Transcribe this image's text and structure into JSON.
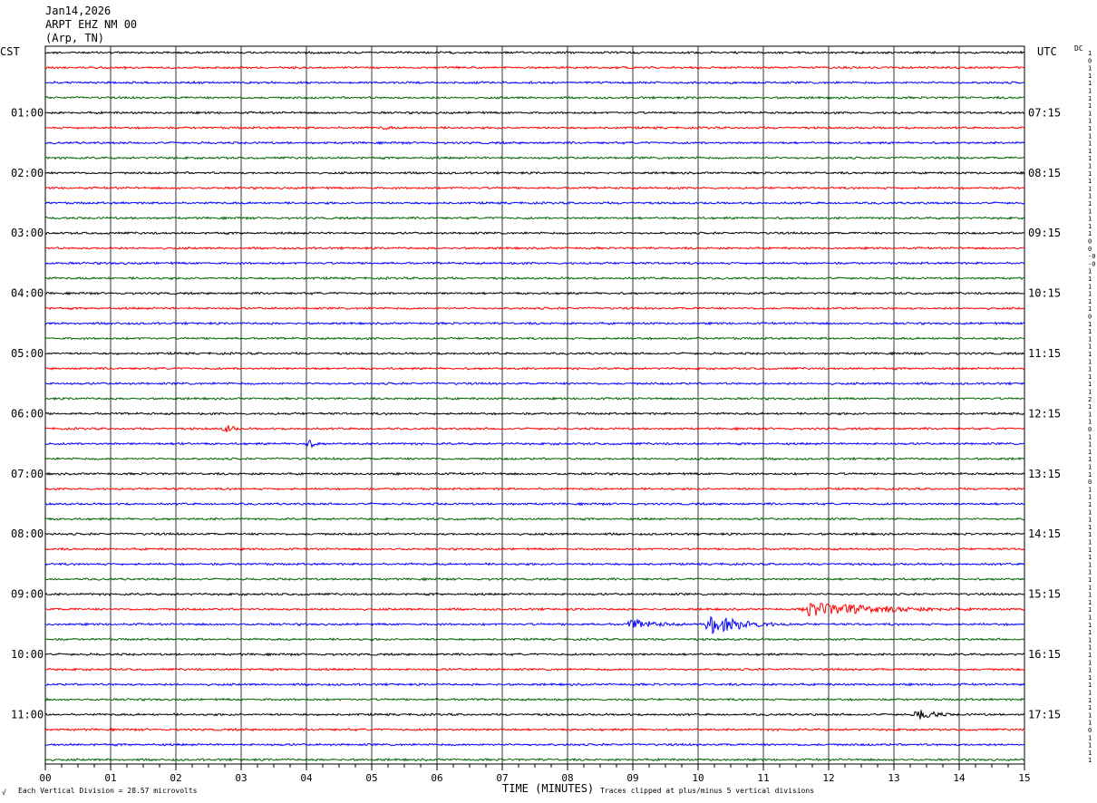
{
  "header": {
    "date": "Jan14,2026",
    "station": "ARPT EHZ NM 00",
    "location": "(Arp, TN)"
  },
  "left_timezone": "CST",
  "right_timezone": "UTC",
  "dc_label": "DC",
  "footer": {
    "vertical_division": "Each Vertical Division =   28.57 microvolts",
    "clip_note": "Traces clipped at plus/minus 5 vertical divisions",
    "corner_mark": "√"
  },
  "colors": {
    "trace_cycle": [
      "#000000",
      "#ff0000",
      "#0000ff",
      "#006400"
    ],
    "grid": "#000000"
  },
  "chart_data": {
    "type": "line",
    "subtype": "helicorder",
    "xlabel": "TIME (MINUTES)",
    "x_ticks": [
      "00",
      "01",
      "02",
      "03",
      "04",
      "05",
      "06",
      "07",
      "08",
      "09",
      "10",
      "11",
      "12",
      "13",
      "14",
      "15"
    ],
    "xlim": [
      0,
      15
    ],
    "minor_ticks_per_minute": 4,
    "rows_per_hour": 4,
    "row_count": 48,
    "left_hour_labels": [
      "01:00",
      "02:00",
      "03:00",
      "04:00",
      "05:00",
      "06:00",
      "07:00",
      "08:00",
      "09:00",
      "10:00",
      "11:00"
    ],
    "right_hour_labels": [
      "07:15",
      "08:15",
      "09:15",
      "10:15",
      "11:15",
      "12:15",
      "13:15",
      "14:15",
      "15:15",
      "16:15",
      "17:15"
    ],
    "dc_offsets": [
      "1",
      "0",
      "1",
      "1",
      "1",
      "1",
      "1",
      "1",
      "1",
      "1",
      "1",
      "1",
      "1",
      "1",
      "1",
      "1",
      "1",
      "1",
      "1",
      "1",
      "1",
      "1",
      "1",
      "1",
      "1",
      "0",
      "0",
      "-0",
      "-0",
      "1",
      "1",
      "1",
      "1",
      "1",
      "1",
      "0",
      "1",
      "1",
      "1",
      "1",
      "1",
      "1",
      "1",
      "1",
      "1",
      "1",
      "2",
      "1",
      "1",
      "1",
      "0",
      "1",
      "1",
      "1",
      "1",
      "1",
      "1",
      "0",
      "1",
      "1",
      "1",
      "1",
      "1",
      "1",
      "1",
      "1",
      "1",
      "1",
      "1",
      "1",
      "1",
      "1",
      "1",
      "1",
      "1",
      "1",
      "1",
      "1",
      "1",
      "1",
      "1",
      "1",
      "1",
      "1",
      "1",
      "1",
      "1",
      "1",
      "1",
      "1",
      "0",
      "1",
      "1",
      "1",
      "1",
      "1"
    ],
    "noise_amplitude_div": 0.22,
    "events": [
      {
        "row": 5,
        "minute": 5.2,
        "duration_min": 0.4,
        "amplitude_div": 0.6
      },
      {
        "row": 25,
        "minute": 2.8,
        "duration_min": 0.3,
        "amplitude_div": 1.1
      },
      {
        "row": 26,
        "minute": 2.1,
        "duration_min": 0.2,
        "amplitude_div": 0.6
      },
      {
        "row": 26,
        "minute": 4.05,
        "duration_min": 0.35,
        "amplitude_div": 1.0
      },
      {
        "row": 37,
        "minute": 11.7,
        "duration_min": 3.3,
        "amplitude_div": 1.9
      },
      {
        "row": 38,
        "minute": 10.2,
        "duration_min": 1.4,
        "amplitude_div": 2.6
      },
      {
        "row": 38,
        "minute": 9.0,
        "duration_min": 1.2,
        "amplitude_div": 1.3
      },
      {
        "row": 44,
        "minute": 13.4,
        "duration_min": 0.7,
        "amplitude_div": 1.5
      }
    ]
  }
}
